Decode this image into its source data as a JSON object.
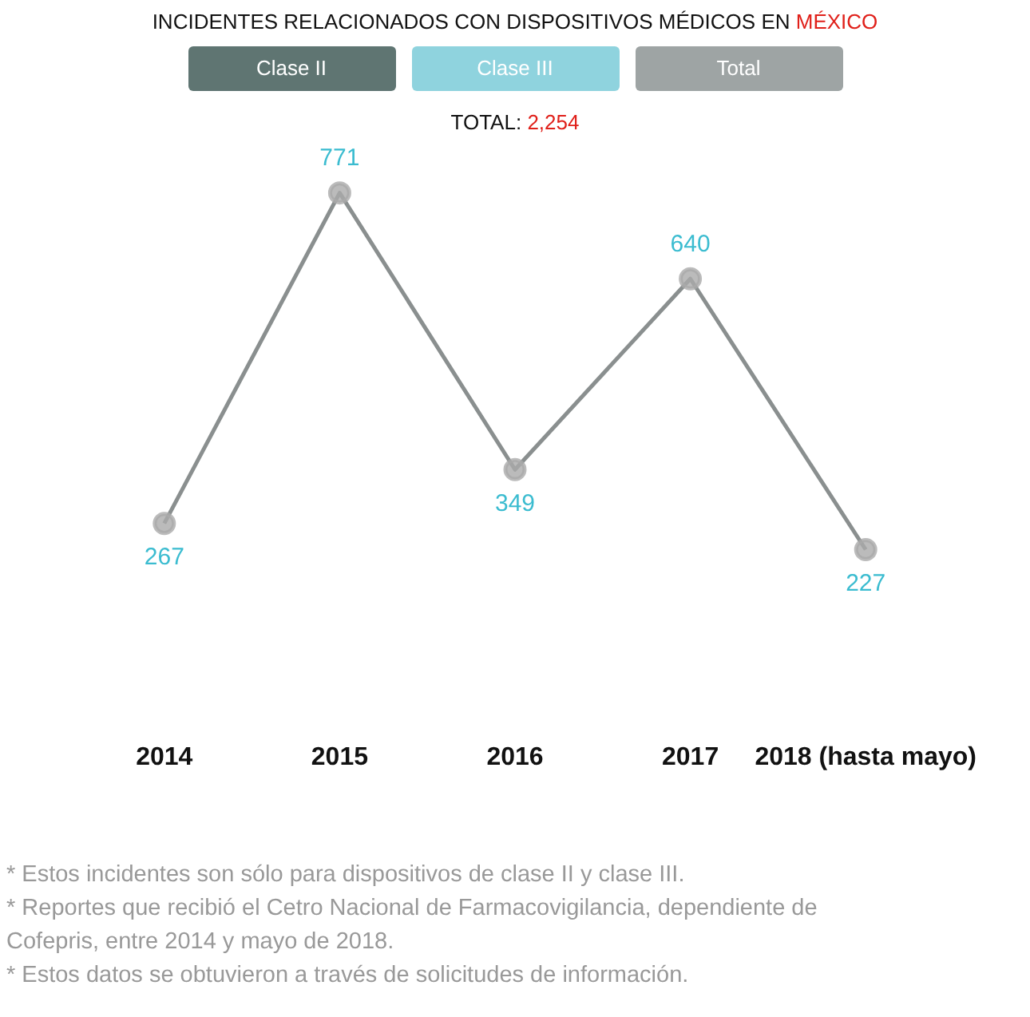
{
  "chart_data": {
    "type": "line",
    "title": "INCIDENTES RELACIONADOS CON DISPOSITIVOS MÉDICOS EN MÉXICO",
    "subtitle": "TOTAL: 2,254",
    "categories": [
      "2014",
      "2015",
      "2016",
      "2017",
      "2018 (hasta mayo)"
    ],
    "series": [
      {
        "color": "#8a8f8f",
        "values": [
          267,
          771,
          349,
          640,
          227
        ]
      }
    ],
    "marker": "circle",
    "data_labels": true,
    "grid": false,
    "legend": false,
    "annotations": [
      "Clase II",
      "Clase  III",
      "Total",
      "* Estos incidentes son sólo para dispositivos de clase II y clase III.",
      "* Reportes que recibió el Cetro Nacional de Farmacovigilancia, dependiente de Cofepris, entre 2014 y mayo de 2018.",
      " * Estos datos se obtuvieron a través de solicitudes de información."
    ]
  }
}
